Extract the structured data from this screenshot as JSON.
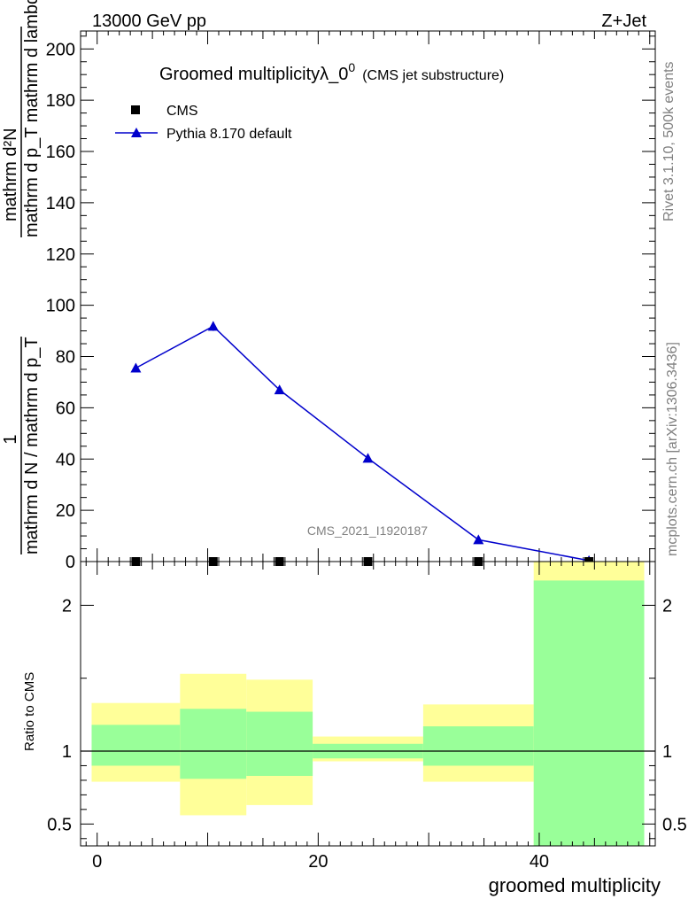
{
  "header": {
    "left": "13000 GeV pp",
    "right": "Z+Jet"
  },
  "side": {
    "rivet": "Rivet 3.1.10,  500k events",
    "mcplots": "mcplots.cern.ch [arXiv:1306.3436]"
  },
  "plot": {
    "title_main": "Groomed multiplicityλ_0",
    "title_sup": "0",
    "title_tag": "(CMS jet substructure)",
    "analysis_id": "CMS_2021_I1920187",
    "ylabel_frac_num": "1",
    "ylabel_frac_den": "mathrm d N / mathrm d p_T",
    "ylabel_main_num": "mathrm d²N",
    "ylabel_main_den": "mathrm d p_T mathrm d lambda",
    "ratio_ylabel": "Ratio to CMS",
    "xlabel": "groomed multiplicity"
  },
  "legend": {
    "cms": "CMS",
    "pythia": "Pythia 8.170 default"
  },
  "colors": {
    "pythia": "#0000cc",
    "band_inner": "#99ff99",
    "band_outer": "#ffff99",
    "side_text": "#808080"
  },
  "chart_data": {
    "type": "line",
    "xlim": [
      -1.5,
      50.5
    ],
    "main": {
      "ylim": [
        0,
        207
      ],
      "yticks": [
        0,
        20,
        40,
        60,
        80,
        100,
        120,
        140,
        160,
        180,
        200
      ],
      "series": [
        {
          "name": "CMS",
          "x": [
            3.5,
            10.5,
            16.5,
            24.5,
            34.5,
            44.5
          ],
          "y": [
            0,
            0,
            0,
            0,
            0,
            0
          ]
        },
        {
          "name": "Pythia 8.170 default",
          "x": [
            3.5,
            10.5,
            16.5,
            24.5,
            34.5,
            44.5
          ],
          "y": [
            75.5,
            91.8,
            67.0,
            40.3,
            8.5,
            0.4
          ],
          "yerr": [
            1.0,
            1.8,
            1.4,
            0.9,
            0.5,
            0.2
          ]
        }
      ]
    },
    "ratio": {
      "ylim": [
        0.35,
        2.3
      ],
      "yticks": [
        0.5,
        1,
        2
      ],
      "reference": 1,
      "bins": [
        {
          "x0": -0.5,
          "x1": 7.5,
          "inner": [
            0.9,
            1.18
          ],
          "outer": [
            0.79,
            1.33
          ]
        },
        {
          "x0": 7.5,
          "x1": 13.5,
          "inner": [
            0.81,
            1.29
          ],
          "outer": [
            0.56,
            1.53
          ]
        },
        {
          "x0": 13.5,
          "x1": 19.5,
          "inner": [
            0.83,
            1.27
          ],
          "outer": [
            0.63,
            1.49
          ]
        },
        {
          "x0": 19.5,
          "x1": 29.5,
          "inner": [
            0.95,
            1.05
          ],
          "outer": [
            0.93,
            1.1
          ]
        },
        {
          "x0": 29.5,
          "x1": 39.5,
          "inner": [
            0.9,
            1.17
          ],
          "outer": [
            0.79,
            1.32
          ]
        },
        {
          "x0": 39.5,
          "x1": 49.5,
          "inner": [
            0.35,
            2.17
          ],
          "outer": [
            0.35,
            2.3
          ]
        }
      ]
    },
    "xticks": [
      0,
      20,
      40
    ]
  }
}
